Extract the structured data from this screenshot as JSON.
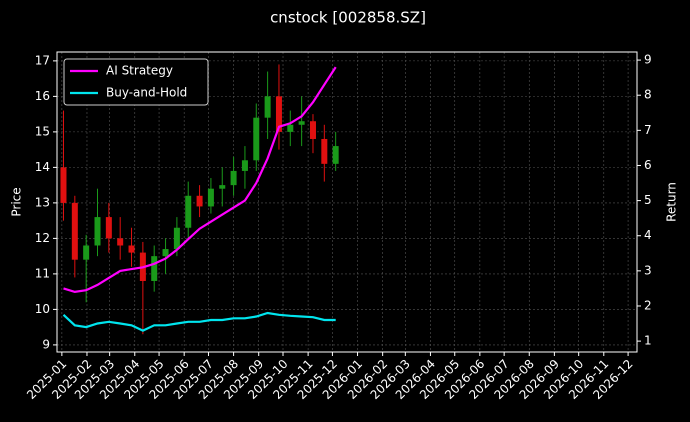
{
  "chart_data": {
    "type": "candlestick",
    "title": "cnstock [002858.SZ]",
    "ylabel": "Price",
    "y2label": "Return",
    "x": [
      "2025-01-03",
      "2025-01-17",
      "2025-01-31",
      "2025-02-14",
      "2025-02-28",
      "2025-03-14",
      "2025-03-28",
      "2025-04-11",
      "2025-04-25",
      "2025-05-09",
      "2025-05-23",
      "2025-06-06",
      "2025-06-20",
      "2025-07-04",
      "2025-07-18",
      "2025-08-01",
      "2025-08-15",
      "2025-08-29",
      "2025-09-12",
      "2025-09-26",
      "2025-10-10",
      "2025-10-24",
      "2025-11-07",
      "2025-11-21",
      "2025-12-05"
    ],
    "open": [
      14.0,
      13.0,
      11.4,
      11.8,
      12.6,
      12.0,
      11.8,
      11.6,
      10.8,
      11.5,
      11.7,
      12.3,
      13.2,
      12.9,
      13.4,
      13.5,
      13.9,
      14.2,
      15.4,
      16.0,
      15.0,
      15.2,
      15.3,
      14.8,
      14.1
    ],
    "high": [
      15.6,
      13.2,
      12.1,
      13.4,
      13.0,
      12.6,
      12.3,
      11.9,
      11.8,
      12.0,
      12.6,
      13.6,
      13.5,
      13.7,
      14.0,
      14.3,
      14.6,
      15.8,
      16.7,
      16.9,
      15.6,
      16.0,
      15.5,
      15.2,
      15.0
    ],
    "low": [
      12.5,
      10.9,
      10.2,
      11.5,
      11.6,
      11.4,
      11.2,
      9.3,
      10.5,
      11.0,
      11.5,
      12.0,
      12.6,
      12.7,
      12.9,
      13.2,
      13.4,
      13.9,
      14.8,
      14.5,
      14.6,
      14.6,
      14.4,
      13.6,
      13.9
    ],
    "close": [
      13.0,
      11.4,
      11.8,
      12.6,
      12.0,
      11.8,
      11.6,
      10.8,
      11.5,
      11.7,
      12.3,
      13.2,
      12.9,
      13.4,
      13.5,
      13.9,
      14.2,
      15.4,
      16.0,
      15.0,
      15.2,
      15.3,
      14.8,
      14.1,
      14.6
    ],
    "up_color": "#1a9a1a",
    "down_color": "#e01010",
    "series": [
      {
        "name": "AI Strategy",
        "color": "#ff00ff",
        "axis": "y2",
        "values": [
          2.5,
          2.4,
          2.45,
          2.6,
          2.8,
          3.0,
          3.05,
          3.1,
          3.2,
          3.35,
          3.6,
          3.9,
          4.2,
          4.4,
          4.6,
          4.8,
          5.0,
          5.5,
          6.2,
          7.1,
          7.2,
          7.4,
          7.8,
          8.3,
          8.8
        ]
      },
      {
        "name": "Buy-and-Hold",
        "color": "#00e5ee",
        "axis": "y2",
        "values": [
          1.75,
          1.45,
          1.4,
          1.5,
          1.55,
          1.5,
          1.45,
          1.3,
          1.45,
          1.45,
          1.5,
          1.55,
          1.55,
          1.6,
          1.6,
          1.65,
          1.65,
          1.7,
          1.8,
          1.75,
          1.72,
          1.7,
          1.68,
          1.6,
          1.6
        ]
      }
    ],
    "xlim": [
      "2024-12-26",
      "2026-12-12"
    ],
    "xticks": [
      {
        "value": "2025-01-01",
        "label": "2025-01"
      },
      {
        "value": "2025-02-01",
        "label": "2025-02"
      },
      {
        "value": "2025-03-01",
        "label": "2025-03"
      },
      {
        "value": "2025-04-01",
        "label": "2025-04"
      },
      {
        "value": "2025-05-01",
        "label": "2025-05"
      },
      {
        "value": "2025-06-01",
        "label": "2025-06"
      },
      {
        "value": "2025-07-01",
        "label": "2025-07"
      },
      {
        "value": "2025-08-01",
        "label": "2025-08"
      },
      {
        "value": "2025-09-01",
        "label": "2025-09"
      },
      {
        "value": "2025-10-01",
        "label": "2025-10"
      },
      {
        "value": "2025-11-01",
        "label": "2025-11"
      },
      {
        "value": "2025-12-01",
        "label": "2025-12"
      },
      {
        "value": "2026-01-01",
        "label": "2026-01"
      },
      {
        "value": "2026-02-01",
        "label": "2026-02"
      },
      {
        "value": "2026-03-01",
        "label": "2026-03"
      },
      {
        "value": "2026-04-01",
        "label": "2026-04"
      },
      {
        "value": "2026-05-01",
        "label": "2026-05"
      },
      {
        "value": "2026-06-01",
        "label": "2026-06"
      },
      {
        "value": "2026-07-01",
        "label": "2026-07"
      },
      {
        "value": "2026-08-01",
        "label": "2026-08"
      },
      {
        "value": "2026-09-01",
        "label": "2026-09"
      },
      {
        "value": "2026-10-01",
        "label": "2026-10"
      },
      {
        "value": "2026-11-01",
        "label": "2026-11"
      },
      {
        "value": "2026-12-01",
        "label": "2026-12"
      }
    ],
    "ylim": [
      8.8,
      17.25
    ],
    "yticks": [
      9,
      10,
      11,
      12,
      13,
      14,
      15,
      16,
      17
    ],
    "y2lim": [
      0.69,
      9.23
    ],
    "y2ticks": [
      1,
      2,
      3,
      4,
      5,
      6,
      7,
      8,
      9
    ],
    "grid": true,
    "legend": "upper left"
  }
}
